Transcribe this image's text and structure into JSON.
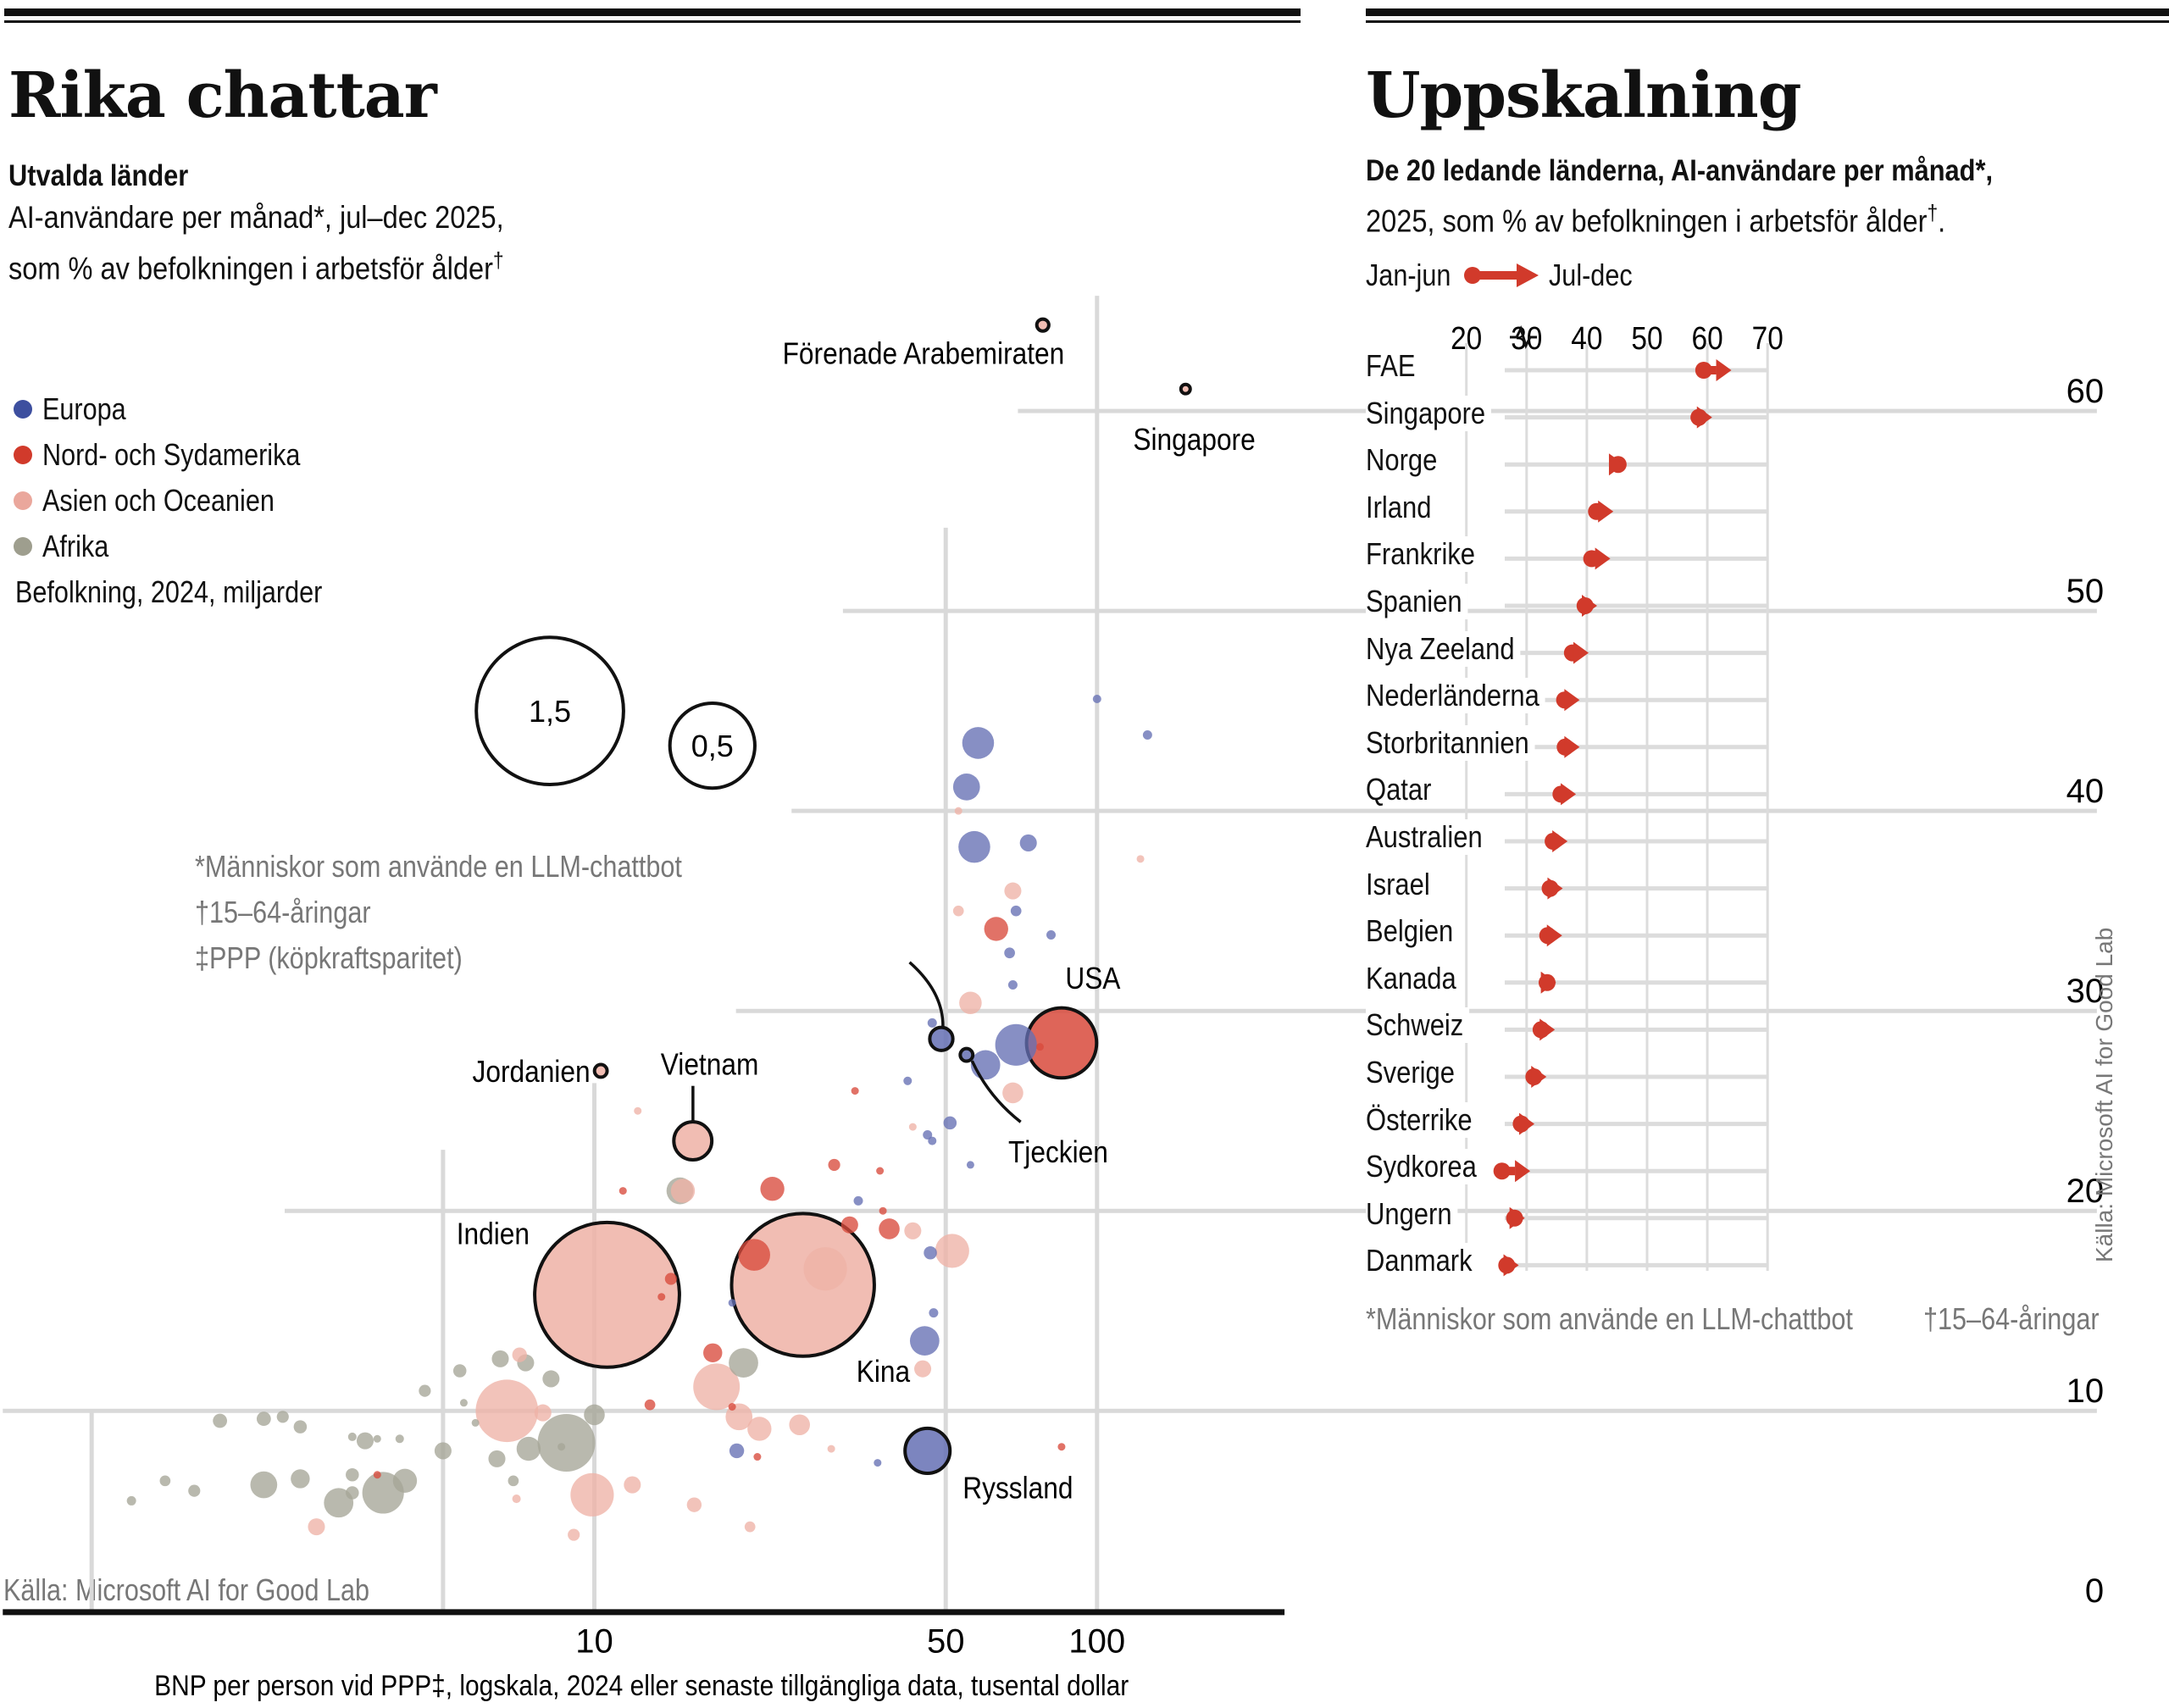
{
  "left": {
    "title": "Rika chattar",
    "subtitle_bold": "Utvalda länder",
    "subtitle_line1": "AI-användare per månad*, jul–dec 2025,",
    "subtitle_line2": "som % av befolkningen i arbetsför ålder",
    "subtitle_sup": "†",
    "legend": [
      {
        "label": "Europa",
        "color": "#3d4f9f"
      },
      {
        "label": "Nord- och Sydamerika",
        "color": "#d13a2b"
      },
      {
        "label": "Asien och Oceanien",
        "color": "#eaa79c"
      },
      {
        "label": "Afrika",
        "color": "#9e9e8e"
      }
    ],
    "size_legend_title": "Befolkning, 2024, miljarder",
    "size_legend": [
      {
        "label": "1,5",
        "value": 1.5
      },
      {
        "label": "0,5",
        "value": 0.5
      }
    ],
    "footnotes": [
      "*Människor som använde en LLM-chattbot",
      "†15–64-åringar",
      "‡PPP (köpkraftsparitet)"
    ],
    "source": "Källa: Microsoft AI for Good Lab",
    "xlabel": "BNP per person vid PPP‡, logskala, 2024 eller senaste tillgängliga data, tusental dollar"
  },
  "right": {
    "title": "Uppskalning",
    "subtitle_bold": "De 20 ledande länderna, AI-användare per månad*,",
    "subtitle_line2": "2025, som % av befolkningen i arbetsför ålder",
    "subtitle_sup": "†",
    "subtitle_end": ".",
    "legend_start": "Jan-jun",
    "legend_end": "Jul-dec",
    "accent": "#d13a2b",
    "source": "Källa: Microsoft AI for Good Lab",
    "footnote1": "*Människor som använde en LLM-chattbot",
    "footnote2": "†15–64-åringar",
    "axis_break_icon": "axis-break-icon"
  },
  "chart_data": [
    {
      "type": "scatter",
      "title": "Rika chattar",
      "xlabel": "BNP per person vid PPP‡, logskala, 2024 eller senaste tillgängliga data, tusental dollar",
      "ylabel": "AI-användare per månad, % av befolkningen i arbetsför ålder",
      "xscale": "log",
      "xticks": [
        10,
        50,
        100
      ],
      "xgrid": [
        1,
        5,
        10,
        50,
        100
      ],
      "yticks": [
        0,
        10,
        20,
        30,
        40,
        50,
        60
      ],
      "ylim": [
        0,
        62
      ],
      "size": "Befolkning, 2024, miljarder",
      "points": [
        {
          "label": "Förenade Arabemiraten",
          "region": "asia",
          "gdp": 78,
          "ai": 64.3,
          "pop": 0.01,
          "outlined": true,
          "labeled": true
        },
        {
          "label": "Singapore",
          "region": "asia",
          "gdp": 150,
          "ai": 61.1,
          "pop": 0.006,
          "outlined": true,
          "labeled": true
        },
        {
          "label": "USA",
          "region": "americas",
          "gdp": 85,
          "ai": 28.4,
          "pop": 0.34,
          "outlined": true,
          "labeled": true
        },
        {
          "label": "Kina",
          "region": "asia",
          "gdp": 26,
          "ai": 16.3,
          "pop": 1.41,
          "outlined": true,
          "labeled": true
        },
        {
          "label": "Indien",
          "region": "asia",
          "gdp": 10.6,
          "ai": 15.8,
          "pop": 1.45,
          "outlined": true,
          "labeled": true
        },
        {
          "label": "Ryssland",
          "region": "europe",
          "gdp": 46,
          "ai": 8.0,
          "pop": 0.14,
          "outlined": true,
          "labeled": true
        },
        {
          "label": "Vietnam",
          "region": "asia",
          "gdp": 15.7,
          "ai": 23.5,
          "pop": 0.1,
          "outlined": true,
          "labeled": true
        },
        {
          "label": "Jordanien",
          "region": "asia",
          "gdp": 10.3,
          "ai": 27.0,
          "pop": 0.011,
          "outlined": true,
          "labeled": true
        },
        {
          "label": "Tjeckien",
          "region": "europe",
          "gdp": 55,
          "ai": 27.8,
          "pop": 0.011,
          "outlined": true,
          "labeled": true
        },
        {
          "label": "",
          "region": "europe",
          "gdp": 49,
          "ai": 28.6,
          "pop": 0.037,
          "outlined": true,
          "labeled": false
        },
        {
          "region": "europe",
          "gdp": 100,
          "ai": 45.6,
          "pop": 0.005
        },
        {
          "region": "europe",
          "gdp": 126,
          "ai": 43.8,
          "pop": 0.006
        },
        {
          "region": "europe",
          "gdp": 58,
          "ai": 43.4,
          "pop": 0.07
        },
        {
          "region": "europe",
          "gdp": 55,
          "ai": 41.2,
          "pop": 0.05
        },
        {
          "region": "asia",
          "gdp": 53,
          "ai": 40.0,
          "pop": 0.003
        },
        {
          "region": "europe",
          "gdp": 57,
          "ai": 38.2,
          "pop": 0.07
        },
        {
          "region": "europe",
          "gdp": 73,
          "ai": 38.4,
          "pop": 0.02
        },
        {
          "region": "asia",
          "gdp": 122,
          "ai": 37.6,
          "pop": 0.002
        },
        {
          "region": "asia",
          "gdp": 68,
          "ai": 36.0,
          "pop": 0.02
        },
        {
          "region": "asia",
          "gdp": 53,
          "ai": 35.0,
          "pop": 0.008
        },
        {
          "region": "europe",
          "gdp": 69,
          "ai": 35.0,
          "pop": 0.008
        },
        {
          "region": "americas",
          "gdp": 63,
          "ai": 34.1,
          "pop": 0.04
        },
        {
          "region": "europe",
          "gdp": 81,
          "ai": 33.8,
          "pop": 0.006
        },
        {
          "region": "europe",
          "gdp": 67,
          "ai": 32.9,
          "pop": 0.008
        },
        {
          "region": "europe",
          "gdp": 68,
          "ai": 31.3,
          "pop": 0.006
        },
        {
          "region": "asia",
          "gdp": 56,
          "ai": 30.4,
          "pop": 0.035
        },
        {
          "region": "europe",
          "gdp": 47,
          "ai": 29.4,
          "pop": 0.006
        },
        {
          "region": "europe",
          "gdp": 60,
          "ai": 27.3,
          "pop": 0.06
        },
        {
          "region": "europe",
          "gdp": 69,
          "ai": 28.3,
          "pop": 0.12
        },
        {
          "region": "asia",
          "gdp": 68,
          "ai": 25.9,
          "pop": 0.03
        },
        {
          "region": "americas",
          "gdp": 77,
          "ai": 28.2,
          "pop": 0.002
        },
        {
          "region": "europe",
          "gdp": 42,
          "ai": 26.5,
          "pop": 0.005
        },
        {
          "region": "americas",
          "gdp": 33,
          "ai": 26.0,
          "pop": 0.004
        },
        {
          "region": "europe",
          "gdp": 51,
          "ai": 24.4,
          "pop": 0.012
        },
        {
          "region": "europe",
          "gdp": 46,
          "ai": 23.8,
          "pop": 0.006
        },
        {
          "region": "europe",
          "gdp": 47,
          "ai": 23.5,
          "pop": 0.005
        },
        {
          "region": "asia",
          "gdp": 43,
          "ai": 24.2,
          "pop": 0.004
        },
        {
          "region": "europe",
          "gdp": 56,
          "ai": 22.3,
          "pop": 0.003
        },
        {
          "region": "asia",
          "gdp": 12.2,
          "ai": 25.0,
          "pop": 0.003
        },
        {
          "region": "americas",
          "gdp": 11.4,
          "ai": 21.0,
          "pop": 0.002
        },
        {
          "region": "americas",
          "gdp": 22.6,
          "ai": 21.1,
          "pop": 0.04
        },
        {
          "region": "americas",
          "gdp": 30,
          "ai": 22.3,
          "pop": 0.01
        },
        {
          "region": "americas",
          "gdp": 37,
          "ai": 22.0,
          "pop": 0.003
        },
        {
          "region": "europe",
          "gdp": 33.5,
          "ai": 20.5,
          "pop": 0.006
        },
        {
          "region": "americas",
          "gdp": 37.5,
          "ai": 20.0,
          "pop": 0.004
        },
        {
          "region": "americas",
          "gdp": 38.6,
          "ai": 19.1,
          "pop": 0.03
        },
        {
          "region": "asia",
          "gdp": 15.0,
          "ai": 21.0,
          "pop": 0.04
        },
        {
          "region": "africa",
          "gdp": 14.8,
          "ai": 21.0,
          "pop": 0.05
        },
        {
          "region": "americas",
          "gdp": 20.8,
          "ai": 17.8,
          "pop": 0.07
        },
        {
          "region": "americas",
          "gdp": 32.2,
          "ai": 19.3,
          "pop": 0.02
        },
        {
          "region": "asia",
          "gdp": 43,
          "ai": 19.0,
          "pop": 0.02
        },
        {
          "region": "europe",
          "gdp": 46.6,
          "ai": 17.9,
          "pop": 0.012
        },
        {
          "region": "asia",
          "gdp": 51.5,
          "ai": 18.0,
          "pop": 0.08
        },
        {
          "region": "asia",
          "gdp": 28.8,
          "ai": 17.1,
          "pop": 0.13
        },
        {
          "region": "europe",
          "gdp": 47.3,
          "ai": 14.9,
          "pop": 0.006
        },
        {
          "region": "europe",
          "gdp": 45.4,
          "ai": 13.5,
          "pop": 0.06
        },
        {
          "region": "asia",
          "gdp": 45,
          "ai": 12.1,
          "pop": 0.02
        },
        {
          "region": "europe",
          "gdp": 18.8,
          "ai": 15.4,
          "pop": 0.002
        },
        {
          "region": "americas",
          "gdp": 13.6,
          "ai": 15.7,
          "pop": 0.004
        },
        {
          "region": "americas",
          "gdp": 14.2,
          "ai": 16.6,
          "pop": 0.01
        },
        {
          "region": "americas",
          "gdp": 17.2,
          "ai": 12.9,
          "pop": 0.025
        },
        {
          "region": "asia",
          "gdp": 17.5,
          "ai": 11.2,
          "pop": 0.15
        },
        {
          "region": "africa",
          "gdp": 19.8,
          "ai": 12.4,
          "pop": 0.06
        },
        {
          "region": "asia",
          "gdp": 19.4,
          "ai": 9.7,
          "pop": 0.05
        },
        {
          "region": "americas",
          "gdp": 12.9,
          "ai": 10.3,
          "pop": 0.008
        },
        {
          "region": "americas",
          "gdp": 18.8,
          "ai": 10.2,
          "pop": 0.004
        },
        {
          "region": "asia",
          "gdp": 21.3,
          "ai": 9.1,
          "pop": 0.04
        },
        {
          "region": "asia",
          "gdp": 25.6,
          "ai": 9.3,
          "pop": 0.03
        },
        {
          "region": "europe",
          "gdp": 19.2,
          "ai": 8.0,
          "pop": 0.015
        },
        {
          "region": "americas",
          "gdp": 21.1,
          "ai": 7.7,
          "pop": 0.001
        },
        {
          "region": "asia",
          "gdp": 15.8,
          "ai": 5.3,
          "pop": 0.015
        },
        {
          "region": "asia",
          "gdp": 20.4,
          "ai": 4.2,
          "pop": 0.008
        },
        {
          "region": "asia",
          "gdp": 29.6,
          "ai": 8.1,
          "pop": 0.003
        },
        {
          "region": "americas",
          "gdp": 85,
          "ai": 8.2,
          "pop": 0.001
        },
        {
          "region": "europe",
          "gdp": 36.6,
          "ai": 7.4,
          "pop": 0.004
        },
        {
          "region": "asia",
          "gdp": 6.7,
          "ai": 10.0,
          "pop": 0.27
        },
        {
          "region": "africa",
          "gdp": 8.8,
          "ai": 8.4,
          "pop": 0.23
        },
        {
          "region": "africa",
          "gdp": 10.0,
          "ai": 9.8,
          "pop": 0.03
        },
        {
          "region": "africa",
          "gdp": 8.2,
          "ai": 11.6,
          "pop": 0.02
        },
        {
          "region": "africa",
          "gdp": 7.3,
          "ai": 12.4,
          "pop": 0.02
        },
        {
          "region": "asia",
          "gdp": 9.9,
          "ai": 5.8,
          "pop": 0.13
        },
        {
          "region": "africa",
          "gdp": 7.4,
          "ai": 8.1,
          "pop": 0.04
        },
        {
          "region": "africa",
          "gdp": 6.9,
          "ai": 6.5,
          "pop": 0.008
        },
        {
          "region": "africa",
          "gdp": 6.4,
          "ai": 7.6,
          "pop": 0.02
        },
        {
          "region": "africa",
          "gdp": 8.6,
          "ai": 8.2,
          "pop": 0.004
        },
        {
          "region": "asia",
          "gdp": 7.9,
          "ai": 9.9,
          "pop": 0.02
        },
        {
          "region": "africa",
          "gdp": 6.5,
          "ai": 12.6,
          "pop": 0.02
        },
        {
          "region": "asia",
          "gdp": 7.1,
          "ai": 12.8,
          "pop": 0.015
        },
        {
          "region": "africa",
          "gdp": 5.4,
          "ai": 12.0,
          "pop": 0.012
        },
        {
          "region": "africa",
          "gdp": 5.8,
          "ai": 9.4,
          "pop": 0.002
        },
        {
          "region": "asia",
          "gdp": 11.9,
          "ai": 6.3,
          "pop": 0.02
        },
        {
          "region": "asia",
          "gdp": 9.1,
          "ai": 3.8,
          "pop": 0.01
        },
        {
          "region": "asia",
          "gdp": 7.0,
          "ai": 5.6,
          "pop": 0.005
        },
        {
          "region": "africa",
          "gdp": 4.6,
          "ai": 11.0,
          "pop": 0.01
        },
        {
          "region": "africa",
          "gdp": 3.5,
          "ai": 8.5,
          "pop": 0.02
        },
        {
          "region": "africa",
          "gdp": 4.1,
          "ai": 8.6,
          "pop": 0.005
        },
        {
          "region": "africa",
          "gdp": 3.7,
          "ai": 8.6,
          "pop": 0.002
        },
        {
          "region": "africa",
          "gdp": 3.3,
          "ai": 8.7,
          "pop": 0.005
        },
        {
          "region": "africa",
          "gdp": 5.0,
          "ai": 8.0,
          "pop": 0.02
        },
        {
          "region": "africa",
          "gdp": 4.2,
          "ai": 6.5,
          "pop": 0.04
        },
        {
          "region": "africa",
          "gdp": 3.8,
          "ai": 5.9,
          "pop": 0.12
        },
        {
          "region": "americas",
          "gdp": 3.7,
          "ai": 6.8,
          "pop": 0.004
        },
        {
          "region": "africa",
          "gdp": 3.3,
          "ai": 6.8,
          "pop": 0.012
        },
        {
          "region": "africa",
          "gdp": 2.2,
          "ai": 9.6,
          "pop": 0.014
        },
        {
          "region": "africa",
          "gdp": 2.4,
          "ai": 9.7,
          "pop": 0.01
        },
        {
          "region": "africa",
          "gdp": 2.6,
          "ai": 9.2,
          "pop": 0.012
        },
        {
          "region": "africa",
          "gdp": 1.8,
          "ai": 9.5,
          "pop": 0.014
        },
        {
          "region": "africa",
          "gdp": 2.2,
          "ai": 6.3,
          "pop": 0.05
        },
        {
          "region": "africa",
          "gdp": 2.6,
          "ai": 6.6,
          "pop": 0.025
        },
        {
          "region": "asia",
          "gdp": 2.8,
          "ai": 4.2,
          "pop": 0.02
        },
        {
          "region": "africa",
          "gdp": 1.4,
          "ai": 6.5,
          "pop": 0.008
        },
        {
          "region": "africa",
          "gdp": 1.6,
          "ai": 6.0,
          "pop": 0.01
        },
        {
          "region": "africa",
          "gdp": 1.2,
          "ai": 5.5,
          "pop": 0.006
        },
        {
          "region": "africa",
          "gdp": 5.5,
          "ai": 10.4,
          "pop": 0.003
        },
        {
          "region": "africa",
          "gdp": 3.3,
          "ai": 5.9,
          "pop": 0.012
        },
        {
          "region": "africa",
          "gdp": 3.1,
          "ai": 5.4,
          "pop": 0.06
        }
      ]
    },
    {
      "type": "arrow-range",
      "title": "Uppskalning",
      "xlim": [
        18,
        70
      ],
      "xticks": [
        20,
        30,
        40,
        50,
        60,
        70
      ],
      "series_names": [
        "Jan-jun",
        "Jul-dec"
      ],
      "rows": [
        {
          "country": "FAE",
          "start": 59.4,
          "end": 64.0
        },
        {
          "country": "Singapore",
          "start": 58.6,
          "end": 60.8
        },
        {
          "country": "Norge",
          "start": 45.2,
          "end": 46.2
        },
        {
          "country": "Irland",
          "start": 41.6,
          "end": 44.4
        },
        {
          "country": "Frankrike",
          "start": 40.8,
          "end": 43.9
        },
        {
          "country": "Spanien",
          "start": 39.7,
          "end": 41.7
        },
        {
          "country": "Nya Zeeland",
          "start": 37.6,
          "end": 40.3
        },
        {
          "country": "Nederländerna",
          "start": 36.3,
          "end": 38.8
        },
        {
          "country": "Storbritannien",
          "start": 36.4,
          "end": 38.8
        },
        {
          "country": "Qatar",
          "start": 35.7,
          "end": 38.2
        },
        {
          "country": "Australien",
          "start": 34.4,
          "end": 36.8
        },
        {
          "country": "Israel",
          "start": 33.9,
          "end": 36.0
        },
        {
          "country": "Belgien",
          "start": 33.5,
          "end": 35.9
        },
        {
          "country": "Kanada",
          "start": 33.4,
          "end": 34.9
        },
        {
          "country": "Schweiz",
          "start": 32.4,
          "end": 34.7
        },
        {
          "country": "Sverige",
          "start": 31.2,
          "end": 33.3
        },
        {
          "country": "Österrike",
          "start": 29.1,
          "end": 31.3
        },
        {
          "country": "Sydkorea",
          "start": 25.9,
          "end": 30.6
        },
        {
          "country": "Ungern",
          "start": 28.0,
          "end": 29.7
        },
        {
          "country": "Danmark",
          "start": 26.7,
          "end": 28.7
        }
      ]
    }
  ]
}
